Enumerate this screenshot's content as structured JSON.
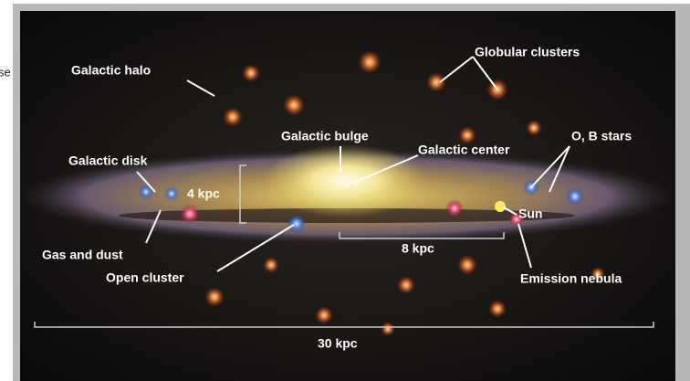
{
  "fragment": "se",
  "labels": {
    "galactic_halo": "Galactic halo",
    "globular_clusters": "Globular clusters",
    "galactic_bulge": "Galactic bulge",
    "galactic_center": "Galactic center",
    "ob_stars": "O, B stars",
    "galactic_disk": "Galactic disk",
    "sun": "Sun",
    "gas_and_dust": "Gas and dust",
    "open_cluster": "Open cluster",
    "emission_nebula": "Emission nebula"
  },
  "scales": {
    "bulge_thickness": "4 kpc",
    "sun_distance": "8 kpc",
    "disk_diameter": "30 kpc"
  }
}
